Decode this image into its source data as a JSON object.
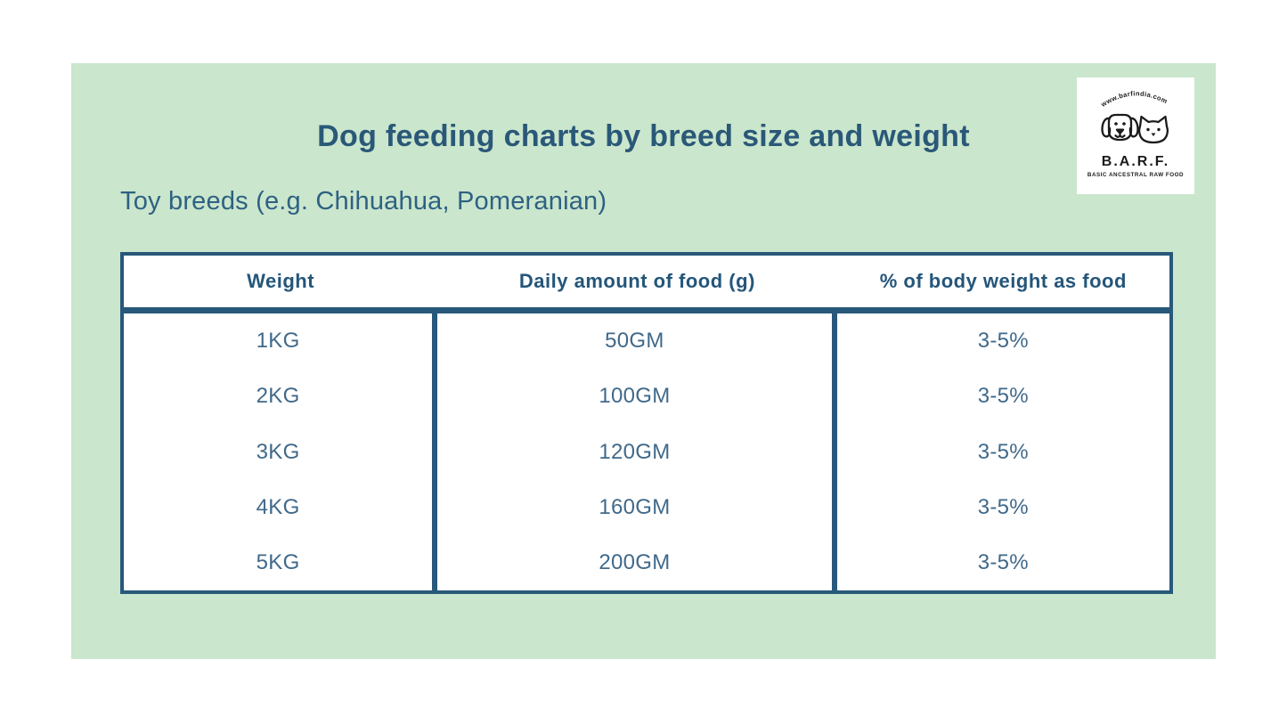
{
  "header": {
    "title": "Dog feeding charts by breed size and weight",
    "subtitle": "Toy breeds (e.g. Chihuahua, Pomeranian)"
  },
  "logo": {
    "website": "www.barfindia.com",
    "name": "B.A.R.F.",
    "tagline": "BASIC ANCESTRAL RAW FOOD"
  },
  "table": {
    "columns": [
      "Weight",
      "Daily amount of food (g)",
      "% of body weight as food"
    ],
    "rows": [
      [
        "1KG",
        "50GM",
        "3-5%"
      ],
      [
        "2KG",
        "100GM",
        "3-5%"
      ],
      [
        "3KG",
        "120GM",
        "3-5%"
      ],
      [
        "4KG",
        "160GM",
        "3-5%"
      ],
      [
        "5KG",
        "200GM",
        "3-5%"
      ]
    ]
  },
  "colors": {
    "page_background": "#ffffff",
    "panel_background": "#cae6cc",
    "heading_teal": "#2a5878",
    "border_teal": "#28587a",
    "cell_text_teal": "#40698a",
    "logo_ink": "#1b1b1b"
  },
  "chart_data": {
    "type": "table",
    "title": "Dog feeding charts by breed size and weight",
    "subtitle": "Toy breeds (e.g. Chihuahua, Pomeranian)",
    "columns": [
      "Weight",
      "Daily amount of food (g)",
      "% of body weight as food"
    ],
    "rows": [
      {
        "weight": "1KG",
        "daily_amount_g": "50GM",
        "pct_body_weight": "3-5%"
      },
      {
        "weight": "2KG",
        "daily_amount_g": "100GM",
        "pct_body_weight": "3-5%"
      },
      {
        "weight": "3KG",
        "daily_amount_g": "120GM",
        "pct_body_weight": "3-5%"
      },
      {
        "weight": "4KG",
        "daily_amount_g": "160GM",
        "pct_body_weight": "3-5%"
      },
      {
        "weight": "5KG",
        "daily_amount_g": "200GM",
        "pct_body_weight": "3-5%"
      }
    ],
    "layout": "header row with no column rules; body split into three bordered columns; grid on outer edges only"
  }
}
